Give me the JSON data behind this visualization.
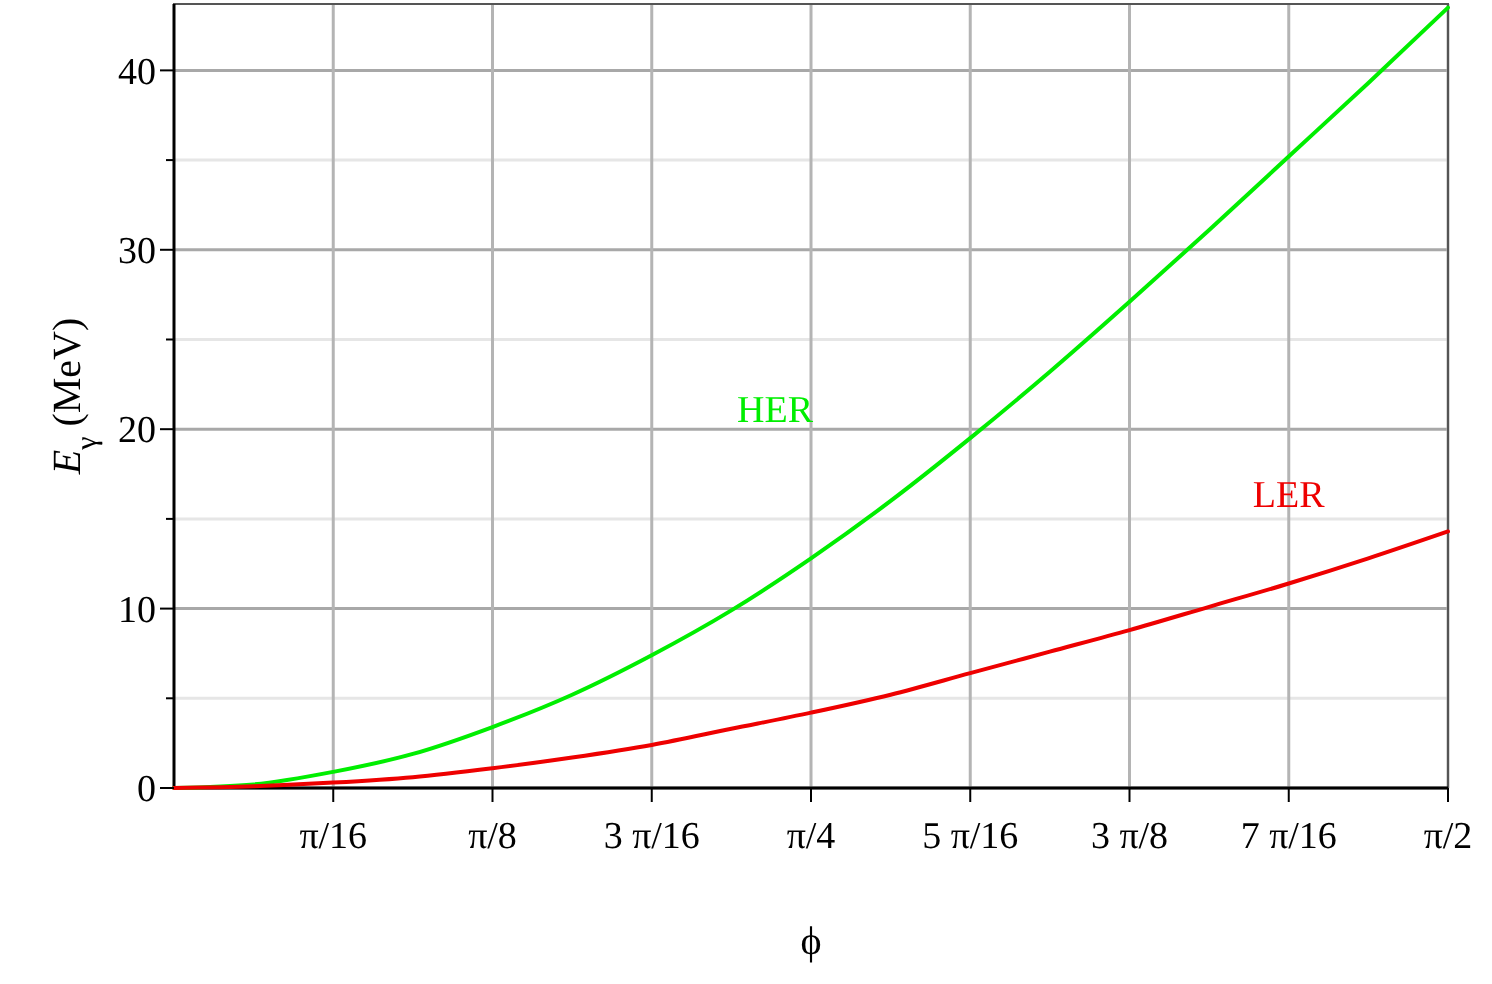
{
  "chart_data": {
    "type": "line",
    "xlabel": "ϕ",
    "ylabel": "E$_{γ}$ (MeV)",
    "x": [
      0,
      0.0982,
      0.1963,
      0.2945,
      0.3927,
      0.4909,
      0.589,
      0.6872,
      0.7854,
      0.8836,
      0.9817,
      1.0799,
      1.1781,
      1.2763,
      1.3744,
      1.4726,
      1.5708
    ],
    "series": [
      {
        "name": "HER",
        "color": "#00ee00",
        "values": [
          0,
          0.2,
          0.9,
          1.9,
          3.4,
          5.2,
          7.4,
          9.9,
          12.8,
          16.0,
          19.5,
          23.2,
          27.1,
          31.1,
          35.2,
          39.3,
          43.5
        ]
      },
      {
        "name": "LER",
        "color": "#ee0000",
        "values": [
          0,
          0.1,
          0.3,
          0.6,
          1.1,
          1.7,
          2.4,
          3.3,
          4.2,
          5.2,
          6.4,
          7.6,
          8.8,
          10.1,
          11.4,
          12.8,
          14.3
        ]
      }
    ],
    "xlim": [
      0,
      1.5708
    ],
    "xticks": [
      {
        "value": 0.19635,
        "label": "π/16"
      },
      {
        "value": 0.3927,
        "label": "π/8"
      },
      {
        "value": 0.58905,
        "label": "3 π/16"
      },
      {
        "value": 0.7854,
        "label": "π/4"
      },
      {
        "value": 0.98175,
        "label": "5 π/16"
      },
      {
        "value": 1.1781,
        "label": "3 π/8"
      },
      {
        "value": 1.37445,
        "label": "7 π/16"
      },
      {
        "value": 1.5708,
        "label": "π/2"
      }
    ],
    "ylim": [
      0,
      43.7
    ],
    "yticks": [
      {
        "value": 0,
        "label": "0"
      },
      {
        "value": 5,
        "label": null
      },
      {
        "value": 10,
        "label": "10"
      },
      {
        "value": 15,
        "label": null
      },
      {
        "value": 20,
        "label": "20"
      },
      {
        "value": 25,
        "label": null
      },
      {
        "value": 30,
        "label": "30"
      },
      {
        "value": 35,
        "label": null
      },
      {
        "value": 40,
        "label": "40"
      }
    ],
    "grid": true,
    "line_style": "solid",
    "marker": "none"
  }
}
